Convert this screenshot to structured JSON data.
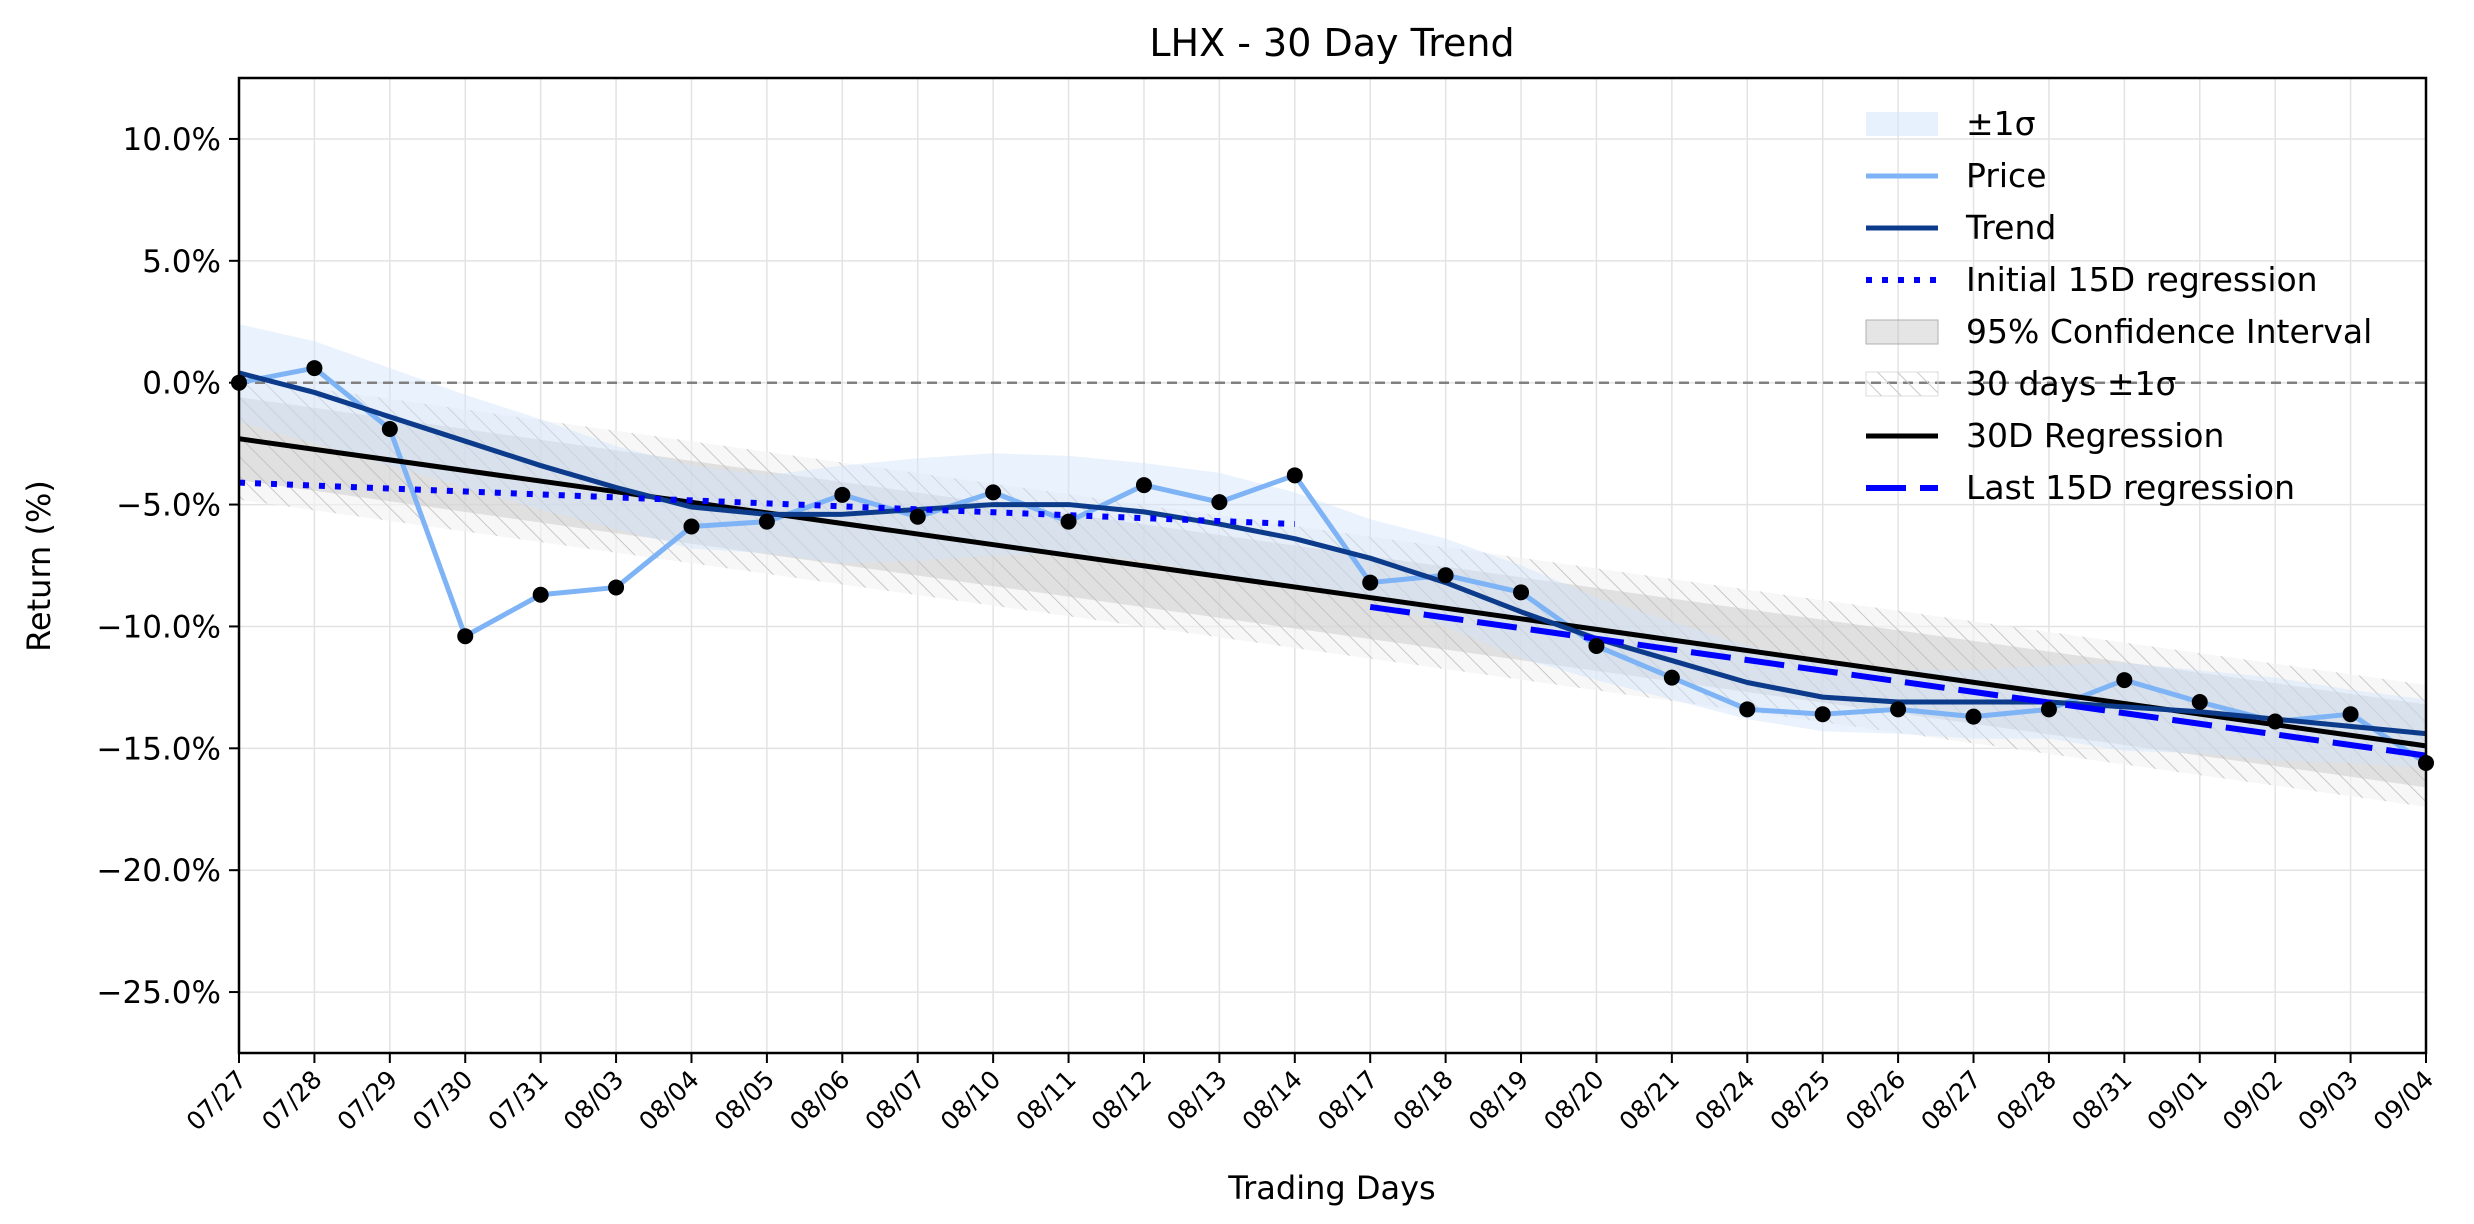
{
  "chart_data": {
    "type": "line",
    "title": "LHX - 30 Day Trend",
    "xlabel": "Trading Days",
    "ylabel": "Return (%)",
    "categories": [
      "07/27",
      "07/28",
      "07/29",
      "07/30",
      "07/31",
      "08/03",
      "08/04",
      "08/05",
      "08/06",
      "08/07",
      "08/10",
      "08/11",
      "08/12",
      "08/13",
      "08/14",
      "08/17",
      "08/18",
      "08/19",
      "08/20",
      "08/21",
      "08/24",
      "08/25",
      "08/26",
      "08/27",
      "08/28",
      "08/31",
      "09/01",
      "09/02",
      "09/03",
      "09/04"
    ],
    "ylim": [
      -27.5,
      12.5
    ],
    "yticks": [
      10,
      5,
      0,
      -5,
      -10,
      -15,
      -20,
      -25
    ],
    "ytick_labels": [
      "10.0%",
      "5.0%",
      "0.0%",
      "−5.0%",
      "−10.0%",
      "−15.0%",
      "−20.0%",
      "−25.0%"
    ],
    "grid": true,
    "zero_line": true,
    "legend_position": "top-right",
    "series": [
      {
        "name": "Price",
        "color": "#7eb3f5",
        "values": [
          0.0,
          0.6,
          -1.9,
          -10.4,
          -8.7,
          -8.4,
          -5.9,
          -5.7,
          -4.6,
          -5.5,
          -4.5,
          -5.7,
          -4.2,
          -4.9,
          -3.8,
          -8.2,
          -7.9,
          -8.6,
          -10.8,
          -12.1,
          -13.4,
          -13.6,
          -13.4,
          -13.7,
          -13.4,
          -12.2,
          -13.1,
          -13.9,
          -13.6,
          -15.6
        ]
      },
      {
        "name": "Trend",
        "color": "#0d3b8c",
        "values": [
          0.4,
          -0.4,
          -1.4,
          -2.4,
          -3.4,
          -4.3,
          -5.1,
          -5.4,
          -5.4,
          -5.2,
          -5.0,
          -5.0,
          -5.3,
          -5.8,
          -6.4,
          -7.2,
          -8.2,
          -9.4,
          -10.5,
          -11.4,
          -12.3,
          -12.9,
          -13.1,
          -13.1,
          -13.1,
          -13.3,
          -13.5,
          -13.8,
          -14.1,
          -14.4
        ]
      },
      {
        "name": "±1σ",
        "color": "#cfe3fb",
        "upper": [
          2.4,
          1.7,
          0.6,
          -0.5,
          -1.5,
          -2.6,
          -3.4,
          -3.8,
          -3.4,
          -3.1,
          -2.9,
          -3.0,
          -3.3,
          -3.7,
          -4.5,
          -5.6,
          -6.4,
          -7.5,
          -8.8,
          -9.8,
          -10.8,
          -11.5,
          -11.8,
          -11.8,
          -11.6,
          -11.5,
          -11.8,
          -12.1,
          -12.6,
          -13.0
        ],
        "lower": [
          -1.6,
          -2.5,
          -3.4,
          -4.3,
          -5.2,
          -6.0,
          -6.8,
          -7.0,
          -7.4,
          -7.3,
          -7.1,
          -7.0,
          -7.3,
          -7.9,
          -8.3,
          -8.8,
          -10.0,
          -11.3,
          -12.2,
          -13.0,
          -13.8,
          -14.3,
          -14.4,
          -14.6,
          -14.6,
          -15.1,
          -15.2,
          -15.5,
          -15.6,
          -15.8
        ]
      },
      {
        "name": "Initial 15D regression",
        "color": "#0000ff",
        "x": [
          0,
          14
        ],
        "values": [
          -4.1,
          -5.8
        ]
      },
      {
        "name": "Last 15D regression",
        "color": "#0000ff",
        "x": [
          15,
          29
        ],
        "values": [
          -9.2,
          -15.3
        ]
      },
      {
        "name": "30D Regression",
        "color": "#000000",
        "x": [
          0,
          29
        ],
        "values": [
          -2.3,
          -14.9
        ]
      },
      {
        "name": "95% Confidence Interval",
        "color": "#bdbdbd",
        "x": [
          0,
          29
        ],
        "upper": [
          -0.6,
          -13.2
        ],
        "lower": [
          -4.0,
          -16.6
        ]
      },
      {
        "name": "30 days ±1σ",
        "color": "#d9d9d9",
        "x": [
          0,
          29
        ],
        "upper": [
          0.2,
          -12.4
        ],
        "lower": [
          -4.8,
          -17.4
        ]
      }
    ],
    "legend": [
      "±1σ",
      "Price",
      "Trend",
      "Initial 15D regression",
      "95% Confidence Interval",
      "30 days ±1σ",
      "30D Regression",
      "Last 15D regression"
    ]
  }
}
